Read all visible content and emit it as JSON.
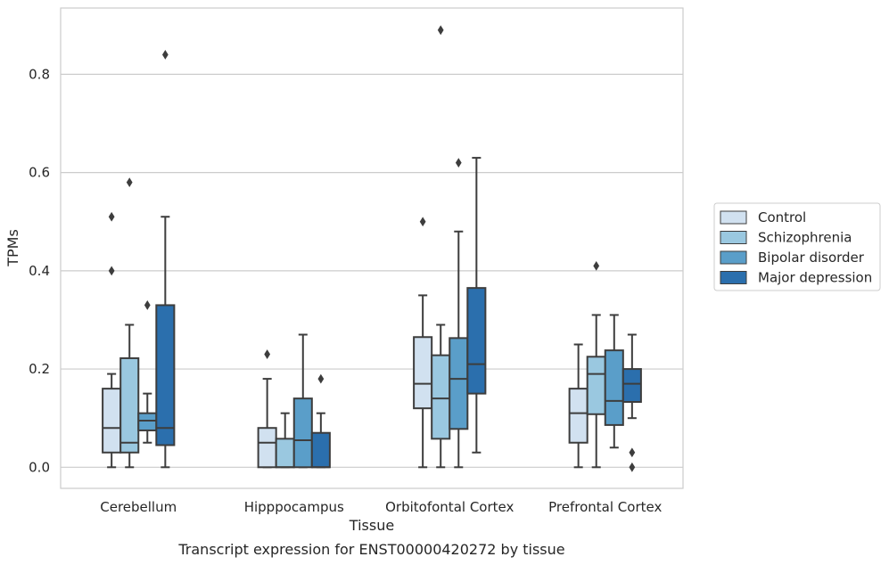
{
  "chart_data": {
    "type": "box",
    "caption": "Transcript expression for ENST00000420272 by tissue",
    "xlabel": "Tissue",
    "ylabel": "TPMs",
    "ylim": [
      -0.043,
      0.935
    ],
    "yticks": [
      0.0,
      0.2,
      0.4,
      0.6,
      0.8
    ],
    "ytick_labels": [
      "0.0",
      "0.2",
      "0.4",
      "0.6",
      "0.8"
    ],
    "grid": "horizontal",
    "legend_position": "right",
    "categories": [
      "Cerebellum",
      "Hipppocampus",
      "Orbitofontal Cortex",
      "Prefrontal Cortex"
    ],
    "series": [
      {
        "name": "Control",
        "color": "#d1e1f0",
        "boxes": [
          {
            "whisker_low": 0.0,
            "q1": 0.03,
            "median": 0.08,
            "q3": 0.16,
            "whisker_high": 0.19,
            "outliers": [
              0.4,
              0.51
            ]
          },
          {
            "whisker_low": 0.0,
            "q1": 0.0,
            "median": 0.05,
            "q3": 0.08,
            "whisker_high": 0.18,
            "outliers": [
              0.23
            ]
          },
          {
            "whisker_low": 0.0,
            "q1": 0.12,
            "median": 0.17,
            "q3": 0.265,
            "whisker_high": 0.35,
            "outliers": [
              0.5
            ]
          },
          {
            "whisker_low": 0.0,
            "q1": 0.05,
            "median": 0.11,
            "q3": 0.16,
            "whisker_high": 0.25,
            "outliers": []
          }
        ]
      },
      {
        "name": "Schizophrenia",
        "color": "#9ac8e0",
        "boxes": [
          {
            "whisker_low": 0.0,
            "q1": 0.03,
            "median": 0.05,
            "q3": 0.222,
            "whisker_high": 0.29,
            "outliers": [
              0.58
            ]
          },
          {
            "whisker_low": 0.0,
            "q1": 0.0,
            "median": 0.0,
            "q3": 0.058,
            "whisker_high": 0.11,
            "outliers": []
          },
          {
            "whisker_low": 0.0,
            "q1": 0.058,
            "median": 0.14,
            "q3": 0.228,
            "whisker_high": 0.29,
            "outliers": [
              0.89
            ]
          },
          {
            "whisker_low": 0.0,
            "q1": 0.108,
            "median": 0.19,
            "q3": 0.225,
            "whisker_high": 0.31,
            "outliers": [
              0.41
            ]
          }
        ]
      },
      {
        "name": "Bipolar disorder",
        "color": "#5a9ec9",
        "boxes": [
          {
            "whisker_low": 0.05,
            "q1": 0.075,
            "median": 0.095,
            "q3": 0.11,
            "whisker_high": 0.15,
            "outliers": [
              0.33
            ]
          },
          {
            "whisker_low": 0.0,
            "q1": 0.0,
            "median": 0.055,
            "q3": 0.14,
            "whisker_high": 0.27,
            "outliers": []
          },
          {
            "whisker_low": 0.0,
            "q1": 0.078,
            "median": 0.18,
            "q3": 0.263,
            "whisker_high": 0.48,
            "outliers": [
              0.62
            ]
          },
          {
            "whisker_low": 0.04,
            "q1": 0.086,
            "median": 0.135,
            "q3": 0.238,
            "whisker_high": 0.31,
            "outliers": []
          }
        ]
      },
      {
        "name": "Major depression",
        "color": "#2b6fad",
        "boxes": [
          {
            "whisker_low": 0.0,
            "q1": 0.045,
            "median": 0.08,
            "q3": 0.33,
            "whisker_high": 0.51,
            "outliers": [
              0.84
            ]
          },
          {
            "whisker_low": 0.0,
            "q1": 0.0,
            "median": 0.0,
            "q3": 0.07,
            "whisker_high": 0.11,
            "outliers": [
              0.18
            ]
          },
          {
            "whisker_low": 0.03,
            "q1": 0.15,
            "median": 0.21,
            "q3": 0.365,
            "whisker_high": 0.63,
            "outliers": []
          },
          {
            "whisker_low": 0.1,
            "q1": 0.133,
            "median": 0.17,
            "q3": 0.2,
            "whisker_high": 0.27,
            "outliers": [
              0.0,
              0.03
            ]
          }
        ]
      }
    ]
  }
}
